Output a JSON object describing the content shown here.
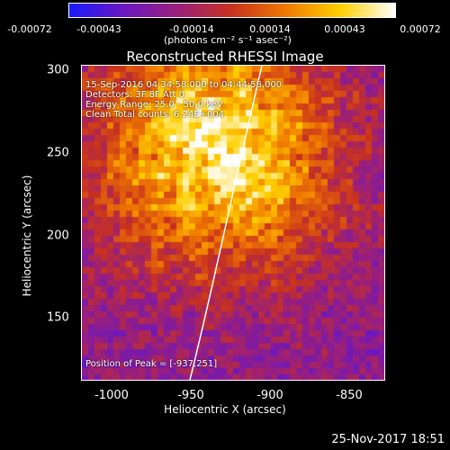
{
  "colorbar": {
    "ticks": [
      "-0.00072",
      "-0.00043",
      "-0.00014",
      "0.00014",
      "0.00043",
      "0.00072"
    ],
    "units": "(photons cm⁻² s⁻¹ asec⁻²)",
    "colors": [
      "#1a1aff",
      "#6a18c0",
      "#9a1f7a",
      "#c8321e",
      "#f07a00",
      "#ffd000",
      "#ffffff"
    ]
  },
  "title": "Reconstructed RHESSI Image",
  "annotations": {
    "line1": "15-Sep-2016 04:34:58.000 to 04:44:58.000",
    "line2": "Detectors: 3F 8F  Att 0",
    "line3": "Energy Range: 25.0 - 50.0 keV",
    "line4": "Clean     Total counts: 6.24E+004",
    "peak": "Position of Peak = [-937,251]"
  },
  "axes": {
    "xlabel": "Heliocentric X (arcsec)",
    "ylabel": "Heliocentric Y (arcsec)",
    "xticks": [
      "-1000",
      "-950",
      "-900",
      "-850"
    ],
    "yticks": [
      "300",
      "250",
      "200",
      "150"
    ],
    "xlim": [
      -1021,
      -829
    ],
    "ylim": [
      105,
      301
    ]
  },
  "peak": {
    "x": -937,
    "y": 251
  },
  "footer": "25-Nov-2017 18:51"
}
